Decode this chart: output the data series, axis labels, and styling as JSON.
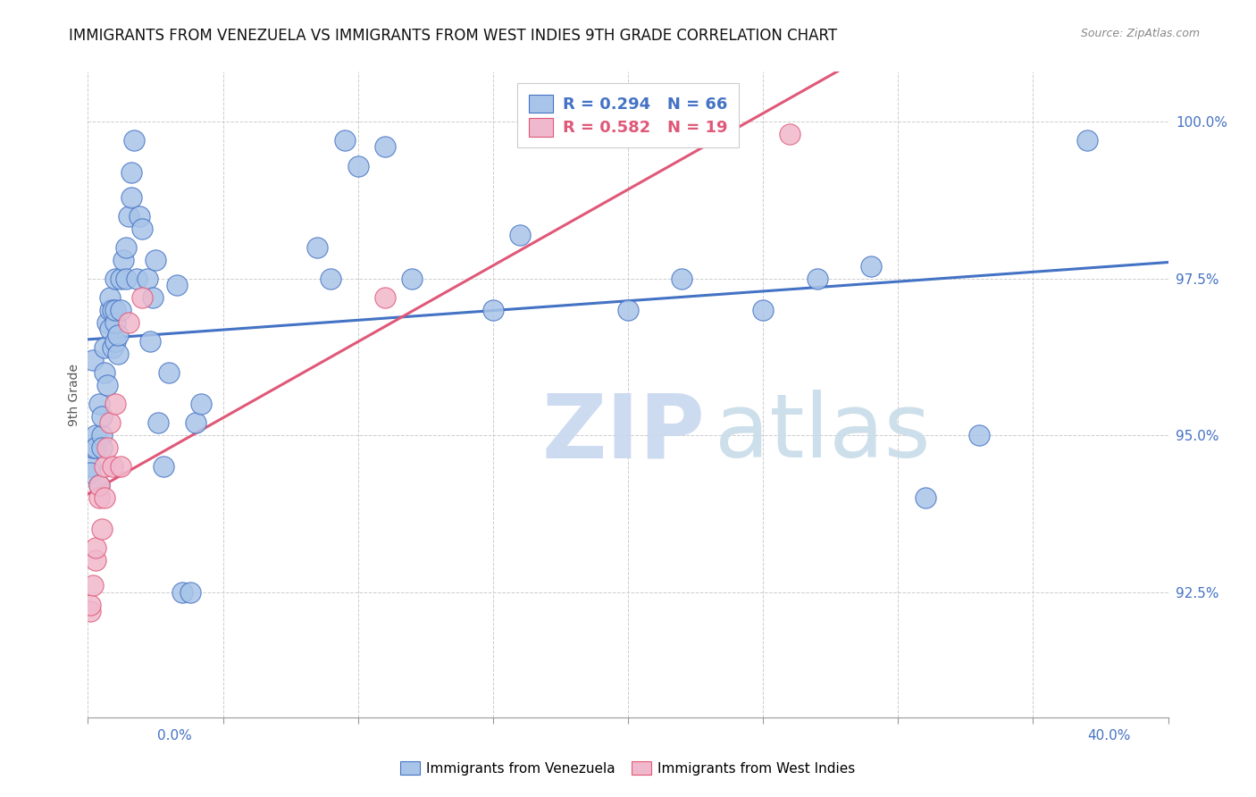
{
  "title": "IMMIGRANTS FROM VENEZUELA VS IMMIGRANTS FROM WEST INDIES 9TH GRADE CORRELATION CHART",
  "source": "Source: ZipAtlas.com",
  "ylabel": "9th Grade",
  "yticks": [
    0.925,
    0.95,
    0.975,
    1.0
  ],
  "ytick_labels": [
    "92.5%",
    "95.0%",
    "97.5%",
    "100.0%"
  ],
  "xlim": [
    0.0,
    0.4
  ],
  "ylim": [
    0.905,
    1.008
  ],
  "legend1_label": "Immigrants from Venezuela",
  "legend2_label": "Immigrants from West Indies",
  "R_blue": "0.294",
  "N_blue": "66",
  "R_pink": "0.582",
  "N_pink": "19",
  "blue_scatter_color": "#a8c4e8",
  "pink_scatter_color": "#f0b8cc",
  "blue_line_color": "#4472c4",
  "pink_line_color": "#e05878",
  "watermark_zip_color": "#c8d8f0",
  "watermark_atlas_color": "#c8d8e8",
  "venezuela_x": [
    0.001,
    0.001,
    0.002,
    0.002,
    0.003,
    0.003,
    0.004,
    0.004,
    0.005,
    0.005,
    0.005,
    0.006,
    0.006,
    0.007,
    0.007,
    0.008,
    0.008,
    0.008,
    0.009,
    0.009,
    0.01,
    0.01,
    0.01,
    0.01,
    0.011,
    0.011,
    0.012,
    0.012,
    0.013,
    0.014,
    0.014,
    0.015,
    0.016,
    0.016,
    0.017,
    0.018,
    0.019,
    0.02,
    0.022,
    0.023,
    0.024,
    0.025,
    0.026,
    0.028,
    0.03,
    0.033,
    0.035,
    0.038,
    0.04,
    0.042,
    0.085,
    0.09,
    0.095,
    0.1,
    0.11,
    0.12,
    0.15,
    0.16,
    0.2,
    0.22,
    0.25,
    0.27,
    0.29,
    0.31,
    0.33,
    0.37
  ],
  "venezuela_y": [
    0.945,
    0.944,
    0.962,
    0.948,
    0.95,
    0.948,
    0.955,
    0.942,
    0.95,
    0.948,
    0.953,
    0.96,
    0.964,
    0.958,
    0.968,
    0.97,
    0.972,
    0.967,
    0.964,
    0.97,
    0.965,
    0.968,
    0.97,
    0.975,
    0.963,
    0.966,
    0.975,
    0.97,
    0.978,
    0.975,
    0.98,
    0.985,
    0.992,
    0.988,
    0.997,
    0.975,
    0.985,
    0.983,
    0.975,
    0.965,
    0.972,
    0.978,
    0.952,
    0.945,
    0.96,
    0.974,
    0.925,
    0.925,
    0.952,
    0.955,
    0.98,
    0.975,
    0.997,
    0.993,
    0.996,
    0.975,
    0.97,
    0.982,
    0.97,
    0.975,
    0.97,
    0.975,
    0.977,
    0.94,
    0.95,
    0.997
  ],
  "westindies_x": [
    0.001,
    0.001,
    0.002,
    0.003,
    0.003,
    0.004,
    0.004,
    0.005,
    0.006,
    0.006,
    0.007,
    0.008,
    0.009,
    0.01,
    0.012,
    0.015,
    0.02,
    0.11,
    0.26
  ],
  "westindies_y": [
    0.922,
    0.923,
    0.926,
    0.93,
    0.932,
    0.94,
    0.942,
    0.935,
    0.94,
    0.945,
    0.948,
    0.952,
    0.945,
    0.955,
    0.945,
    0.968,
    0.972,
    0.972,
    0.998
  ]
}
